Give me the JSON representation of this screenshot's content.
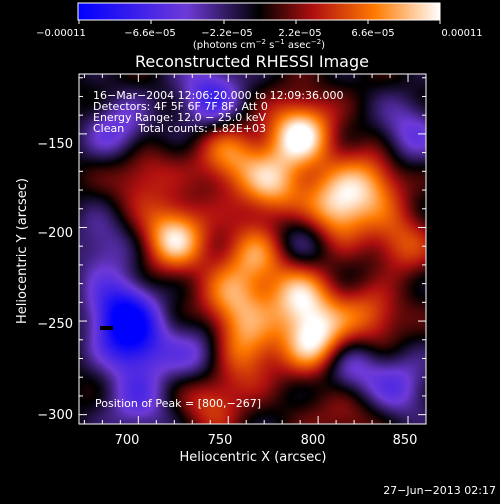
{
  "chart_data": {
    "type": "heatmap",
    "title": "Reconstructed RHESSI Image",
    "xlabel": "Heliocentric X (arcsec)",
    "ylabel": "Heliocentric Y (arcsec)",
    "xlim": [
      667,
      860
    ],
    "ylim": [
      -305,
      -118
    ],
    "xticks": [
      700,
      750,
      800,
      850
    ],
    "xtick_labels": [
      "700",
      "750",
      "800",
      "850"
    ],
    "yticks": [
      -150,
      -200,
      -250,
      -300
    ],
    "ytick_labels": [
      "−150",
      "−200",
      "−250",
      "−300"
    ],
    "colorbar": {
      "range": [
        -0.00011,
        0.00011
      ],
      "tick_labels": [
        "−0.00011",
        "−6.6e−05",
        "−2.2e−05",
        "2.2e−05",
        "6.6e−05",
        "0.00011"
      ],
      "units_main": "(photons cm",
      "units_sup1": "−2",
      "units_mid1": " s",
      "units_sup2": "−1",
      "units_mid2": " asec",
      "units_sup3": "−2",
      "units_end": ")"
    },
    "annotations": [
      "16−Mar−2004 12:06:20.000 to 12:09:36.000",
      "Detectors: 4F 5F 6F 7F 8F, Att 0",
      "Energy Range: 12.0 − 25.0 keV",
      "Clean    Total counts: 1.82E+03"
    ],
    "peak_label": "Position of Peak = [800,−267]",
    "peak": [
      800,
      -267
    ],
    "blobs": [
      {
        "x": 790,
        "y": -150,
        "v": 0.00011
      },
      {
        "x": 775,
        "y": -178,
        "v": 8e-05
      },
      {
        "x": 750,
        "y": -162,
        "v": 7e-05
      },
      {
        "x": 810,
        "y": -190,
        "v": 0.0001
      },
      {
        "x": 830,
        "y": -175,
        "v": 7e-05
      },
      {
        "x": 720,
        "y": -205,
        "v": 0.0001
      },
      {
        "x": 765,
        "y": -215,
        "v": 7e-05
      },
      {
        "x": 752,
        "y": -240,
        "v": 7e-05
      },
      {
        "x": 800,
        "y": -262,
        "v": 0.00011
      },
      {
        "x": 790,
        "y": -238,
        "v": 9e-05
      },
      {
        "x": 760,
        "y": -265,
        "v": 7e-05
      },
      {
        "x": 830,
        "y": -245,
        "v": 7e-05
      },
      {
        "x": 845,
        "y": -210,
        "v": 6e-05
      },
      {
        "x": 700,
        "y": -170,
        "v": 5e-05
      },
      {
        "x": 740,
        "y": -290,
        "v": 6e-05
      },
      {
        "x": 815,
        "y": -298,
        "v": 4e-05
      },
      {
        "x": 690,
        "y": -245,
        "v": -9e-05
      },
      {
        "x": 698,
        "y": -262,
        "v": -8e-05
      },
      {
        "x": 740,
        "y": -130,
        "v": -7e-05
      },
      {
        "x": 690,
        "y": -150,
        "v": -6e-05
      },
      {
        "x": 735,
        "y": -270,
        "v": -6e-05
      },
      {
        "x": 815,
        "y": -275,
        "v": -7e-05
      },
      {
        "x": 845,
        "y": -285,
        "v": -5e-05
      },
      {
        "x": 850,
        "y": -150,
        "v": -5e-05
      },
      {
        "x": 700,
        "y": -295,
        "v": -5e-05
      },
      {
        "x": 790,
        "y": -205,
        "v": -4e-05
      },
      {
        "x": 835,
        "y": -230,
        "v": -3e-05
      },
      {
        "x": 680,
        "y": -210,
        "v": -4e-05
      }
    ]
  },
  "footer": {
    "timestamp": "27−Jun−2013 02:17"
  }
}
